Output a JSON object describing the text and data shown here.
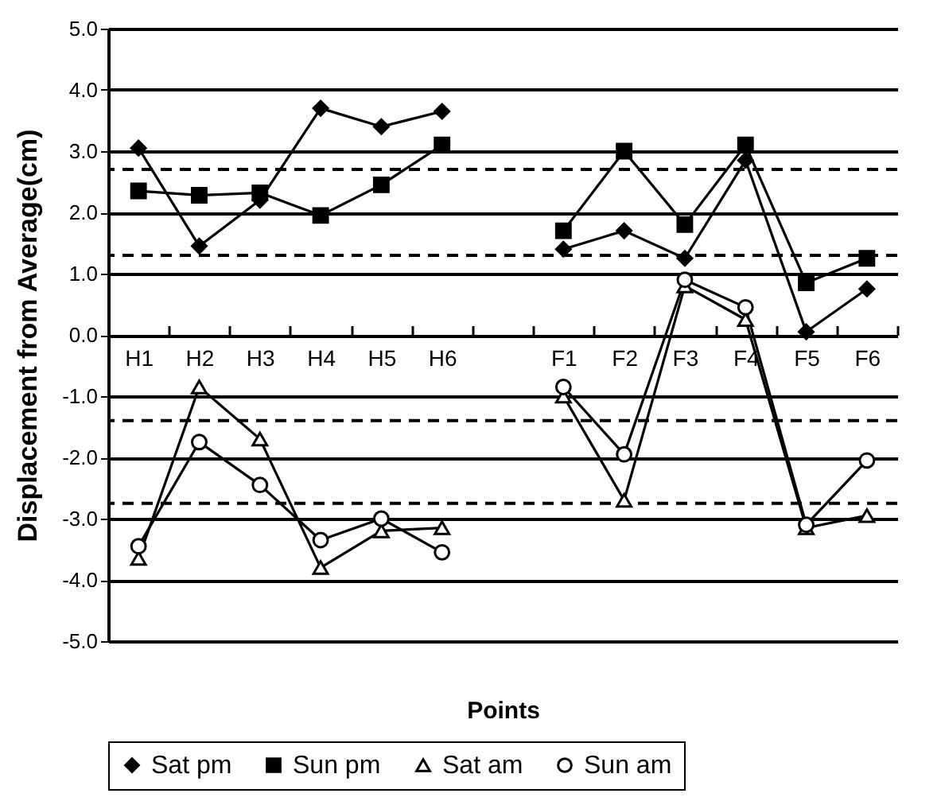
{
  "chart_data": {
    "type": "line",
    "xlabel": "Points",
    "ylabel": "Displacement from Average(cm)",
    "categories": [
      "H1",
      "H2",
      "H3",
      "H4",
      "H5",
      "H6",
      null,
      "F1",
      "F2",
      "F3",
      "F4",
      "F5",
      "F6"
    ],
    "series": [
      {
        "name": "Sat pm",
        "color": "#000000",
        "marker": "diamond",
        "values": [
          3.05,
          1.45,
          2.2,
          3.7,
          3.4,
          3.65,
          null,
          1.4,
          1.7,
          1.25,
          2.85,
          0.05,
          0.75
        ]
      },
      {
        "name": "Sun pm",
        "color": "#000000",
        "marker": "square",
        "values": [
          2.35,
          2.28,
          2.32,
          1.95,
          2.45,
          3.1,
          null,
          1.7,
          3.0,
          1.8,
          3.1,
          0.85,
          1.25
        ]
      },
      {
        "name": "Sat am",
        "color": "#000000",
        "marker": "triangle",
        "values": [
          -3.65,
          -0.85,
          -1.7,
          -3.8,
          -3.2,
          -3.15,
          null,
          -1.0,
          -2.7,
          0.8,
          0.25,
          -3.15,
          -2.95
        ]
      },
      {
        "name": "Sun am",
        "color": "#000000",
        "marker": "circle",
        "values": [
          -3.45,
          -1.75,
          -2.45,
          -3.35,
          -3.0,
          -3.55,
          null,
          -0.85,
          -1.95,
          0.9,
          0.45,
          -3.1,
          -2.05
        ]
      }
    ],
    "ylim": [
      -5,
      5
    ],
    "yticks": [
      {
        "value": -5,
        "label": "-5.0"
      },
      {
        "value": -4,
        "label": "-4.0"
      },
      {
        "value": -3,
        "label": "-3.0"
      },
      {
        "value": -2,
        "label": "-2.0"
      },
      {
        "value": -1,
        "label": "-1.0"
      },
      {
        "value": 0,
        "label": "0.0"
      },
      {
        "value": 1,
        "label": "1.0"
      },
      {
        "value": 2,
        "label": "2.0"
      },
      {
        "value": 3,
        "label": "3.0"
      },
      {
        "value": 4,
        "label": "4.0"
      },
      {
        "value": 5,
        "label": "5.0"
      }
    ],
    "ref_lines": [
      {
        "axis": "y",
        "value": 2.7,
        "line_style": "dashed"
      },
      {
        "axis": "y",
        "value": 1.3,
        "line_style": "dashed"
      },
      {
        "axis": "y",
        "value": -1.4,
        "line_style": "dashed"
      },
      {
        "axis": "y",
        "value": -2.75,
        "line_style": "dashed"
      }
    ],
    "grid": "y",
    "legend": "bottom",
    "line_style": "solid"
  }
}
